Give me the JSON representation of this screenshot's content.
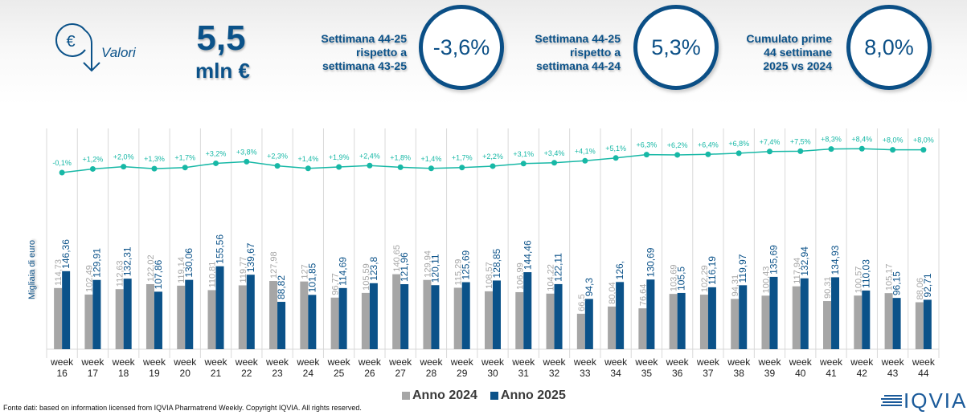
{
  "header": {
    "icon": "euro-arrow-icon",
    "valori_label": "Valori",
    "total_value": "5,5",
    "total_unit": "mln €",
    "kpis": [
      {
        "description": [
          "Settimana 44-25",
          "rispetto a",
          "settimana 43-25"
        ],
        "value": "-3,6%"
      },
      {
        "description": [
          "Settimana 44-25",
          "rispetto a",
          "settimana 44-24"
        ],
        "value": "5,3%"
      },
      {
        "description": [
          "Cumulato prime",
          "44 settimane",
          "2025 vs 2024"
        ],
        "value": "8,0%"
      }
    ]
  },
  "colors": {
    "anno2024": "#a6a6a6",
    "anno2025": "#0b5289",
    "cumulative": "#17b8a6",
    "grid": "#d9d9d9",
    "accent": "#0b5289"
  },
  "footer": {
    "source": "Fonte dati: based on information licensed from IQVIA Pharmatrend Weekly. Copyright IQVIA. All rights reserved.",
    "logo": "IQVIA"
  },
  "chart_data": {
    "type": "bar",
    "title": "",
    "xlabel": "",
    "ylabel": "Migliaia di euro",
    "ylim": [
      0,
      160
    ],
    "grid": "vertical category separators",
    "legend_position": "bottom-center",
    "categories": [
      "week 16",
      "week 17",
      "week 18",
      "week 19",
      "week 20",
      "week 21",
      "week 22",
      "week 23",
      "week 24",
      "week 25",
      "week 26",
      "week 27",
      "week 28",
      "week 29",
      "week 30",
      "week 31",
      "week 32",
      "week 33",
      "week 34",
      "week 35",
      "week 36",
      "week 37",
      "week 38",
      "week 39",
      "week 40",
      "week 41",
      "week 42",
      "week 43",
      "week 44"
    ],
    "series": [
      {
        "name": "Anno 2024",
        "labels": [
          "114,73",
          "102,49",
          "112,63",
          "122,02",
          "119,14",
          "110,81",
          "119,77",
          "127,98",
          "127",
          "96,77",
          "105,59",
          "140,65",
          "129,94",
          "115,29",
          "108,57",
          "106,99",
          "104,22",
          "66,5",
          "80,04",
          "76,64",
          "103,69",
          "102,29",
          "94,31",
          "100,43",
          "117,94",
          "90,31",
          "100,57",
          "105,17",
          "88,06"
        ],
        "values": [
          114.73,
          102.49,
          112.63,
          122.02,
          119.14,
          110.81,
          119.77,
          127.98,
          127,
          96.77,
          105.59,
          140.65,
          129.94,
          115.29,
          108.57,
          106.99,
          104.22,
          66.5,
          80.04,
          76.64,
          103.69,
          102.29,
          94.31,
          100.43,
          117.94,
          90.31,
          100.57,
          105.17,
          88.06
        ]
      },
      {
        "name": "Anno 2025",
        "labels": [
          "146,36",
          "129,91",
          "132,31",
          "107,86",
          "130,06",
          "155,56",
          "139,67",
          "88,82",
          "101,85",
          "114,69",
          "123,8",
          "121,96",
          "120,11",
          "125,69",
          "128,85",
          "144,46",
          "122,11",
          "94,3",
          "126,",
          "130,69",
          "105,5",
          "116,19",
          "119,97",
          "135,69",
          "132,94",
          "134,93",
          "110,03",
          "96,15",
          "92,71"
        ],
        "values": [
          146.36,
          129.91,
          132.31,
          107.86,
          130.06,
          155.56,
          139.67,
          88.82,
          101.85,
          114.69,
          123.8,
          121.96,
          120.11,
          125.69,
          128.85,
          144.46,
          122.11,
          94.3,
          126,
          130.69,
          105.5,
          116.19,
          119.97,
          135.69,
          132.94,
          134.93,
          110.03,
          96.15,
          92.71
        ]
      }
    ],
    "cumulative_growth": {
      "name": "Cumulato % 2025 vs 2024",
      "labels": [
        "-0,1%",
        "+1,2%",
        "+2,0%",
        "+1,3%",
        "+1,7%",
        "+3,2%",
        "+3,8%",
        "+2,3%",
        "+1,4%",
        "+1,9%",
        "+2,4%",
        "+1,8%",
        "+1,4%",
        "+1,7%",
        "+2,2%",
        "+3,1%",
        "+3,4%",
        "+4,1%",
        "+5,1%",
        "+6,3%",
        "+6,2%",
        "+6,4%",
        "+6,8%",
        "+7,4%",
        "+7,5%",
        "+8,3%",
        "+8,4%",
        "+8,0%",
        "+8,0%"
      ],
      "values": [
        -0.1,
        1.2,
        2.0,
        1.3,
        1.7,
        3.2,
        3.8,
        2.3,
        1.4,
        1.9,
        2.4,
        1.8,
        1.4,
        1.7,
        2.2,
        3.1,
        3.4,
        4.1,
        5.1,
        6.3,
        6.2,
        6.4,
        6.8,
        7.4,
        7.5,
        8.3,
        8.4,
        8.0,
        8.0
      ]
    }
  }
}
